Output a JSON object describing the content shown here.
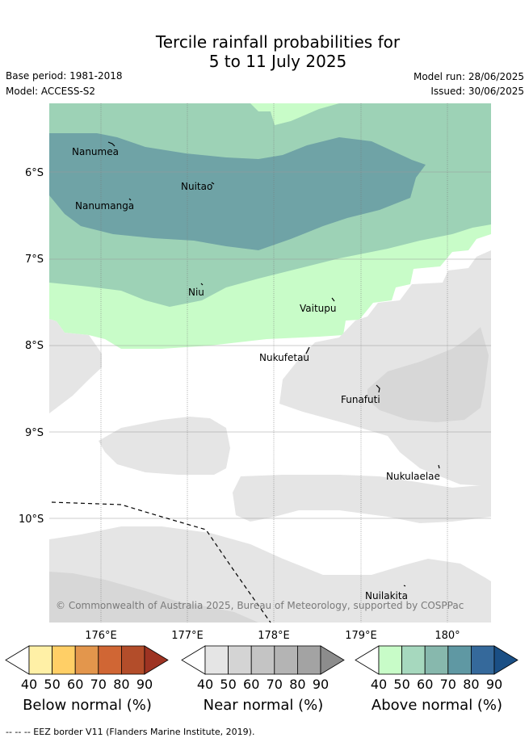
{
  "title": {
    "line1": "Tercile rainfall probabilities for",
    "line2": "5 to 11 July 2025"
  },
  "meta": {
    "base_period": "Base period: 1981-2018",
    "model": "Model: ACCESS-S2",
    "model_run": "Model run: 28/06/2025",
    "issued": "Issued: 30/06/2025"
  },
  "map": {
    "x_ticks": [
      "176°E",
      "177°E",
      "178°E",
      "179°E",
      "180°"
    ],
    "y_ticks": [
      "6°S",
      "7°S",
      "8°S",
      "9°S",
      "10°S"
    ],
    "places": [
      "Nanumea",
      "Nuitao",
      "Nanumanga",
      "Niu",
      "Vaitupu",
      "Nukufetau",
      "Funafuti",
      "Nukulaelae",
      "Nuilakita"
    ],
    "copyright": "© Commonwealth of Australia 2025, Bureau of Meteorology, supported by COSPPac",
    "colors": {
      "above_40": "#c8fcc8",
      "above_50": "#9dd2b6",
      "above_60": "#6fa3a6",
      "near_40": "#e5e5e5",
      "near_50": "#d7d7d7",
      "eez_border": "#000000"
    }
  },
  "legend": {
    "ticks": [
      "40",
      "50",
      "60",
      "70",
      "80",
      "90"
    ],
    "below": {
      "title": "Below normal (%)",
      "colors": [
        "#fff0a6",
        "#ffcf66",
        "#e3964c",
        "#d06634",
        "#b34d2a",
        "#9e3322"
      ]
    },
    "near": {
      "title": "Near normal (%)",
      "colors": [
        "#e5e5e5",
        "#d4d4d4",
        "#c4c4c4",
        "#b4b4b4",
        "#a3a3a3",
        "#8c8c8c"
      ]
    },
    "above": {
      "title": "Above normal (%)",
      "colors": [
        "#c8fcc8",
        "#a6d8be",
        "#87b8ad",
        "#5f98a3",
        "#35699b",
        "#1a4f85"
      ]
    }
  },
  "footer": "--  --  -- EEZ border V11 (Flanders Marine Institute, 2019)."
}
